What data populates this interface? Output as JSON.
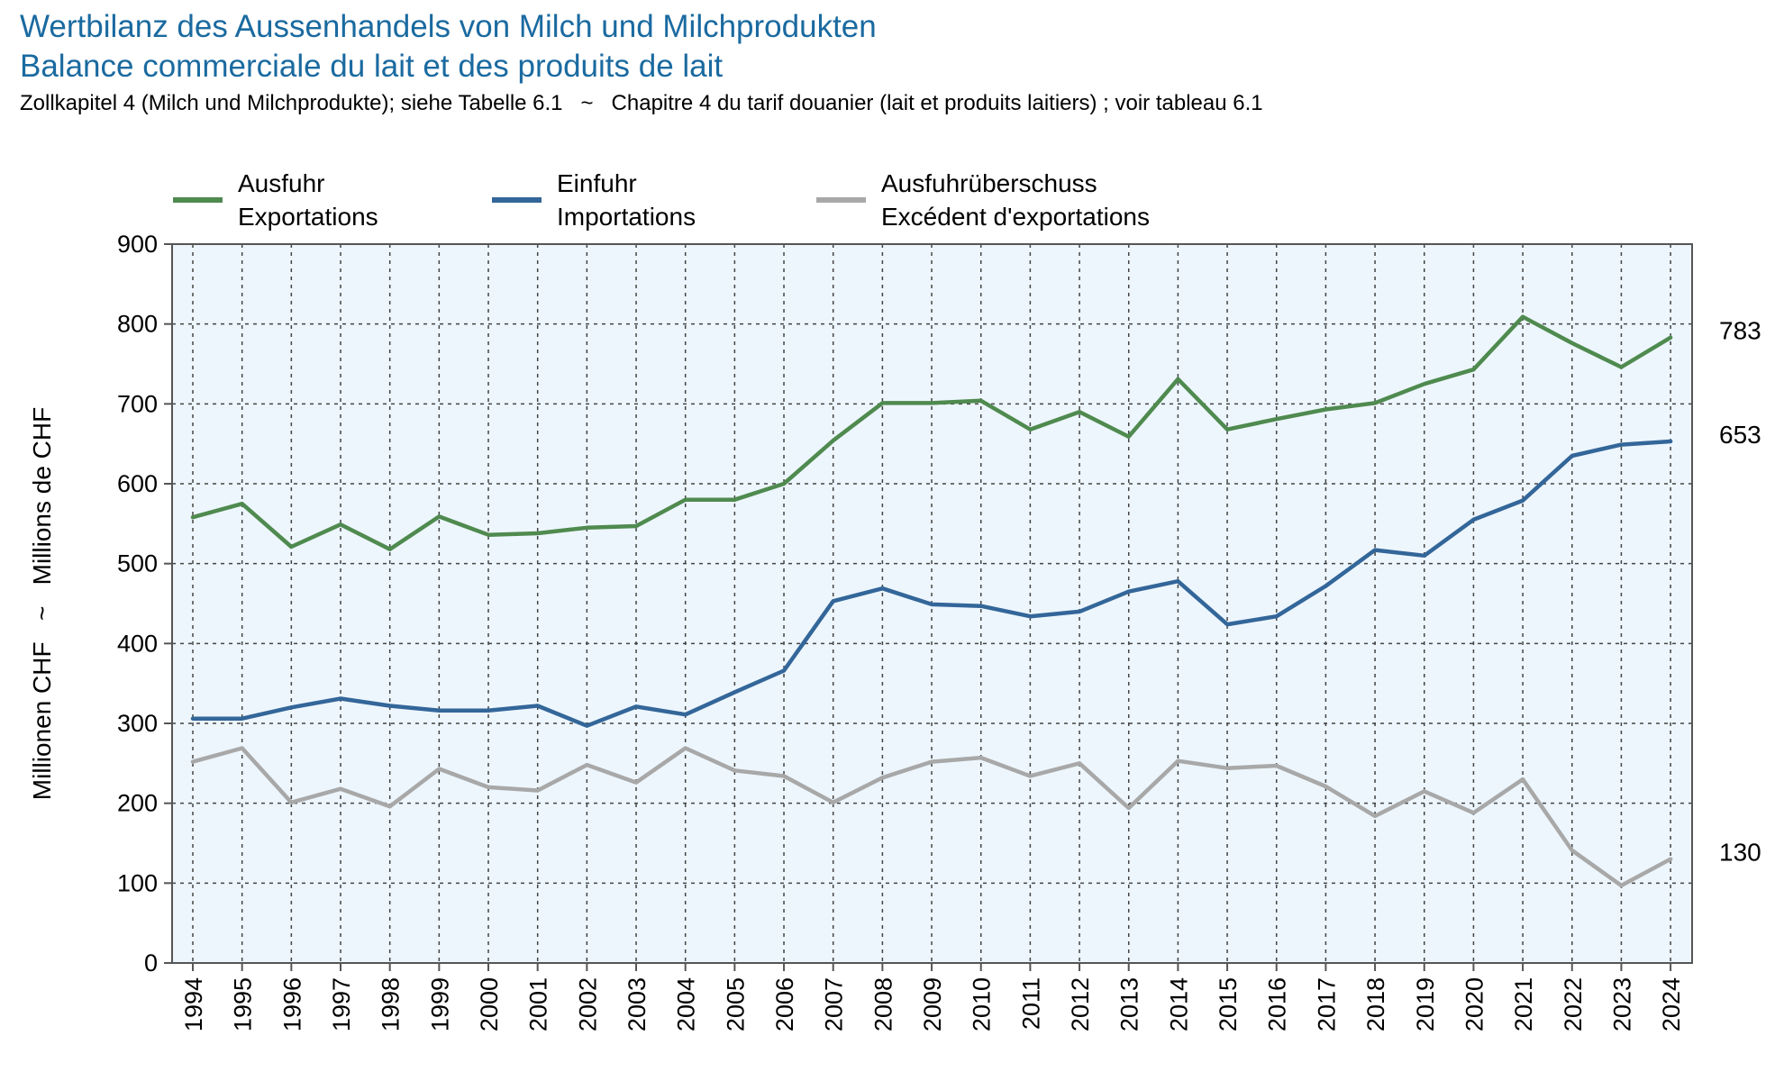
{
  "header": {
    "title_de": "Wertbilanz des Aussenhandels von Milch und Milchprodukten",
    "title_fr": "Balance commerciale du lait et des produits de lait",
    "subtitle": "Zollkapitel 4 (Milch und Milchprodukte); siehe Tabelle 6.1   ~   Chapitre 4 du tarif douanier (lait et produits laitiers) ; voir tableau 6.1"
  },
  "colors": {
    "export": "#4f8a4f",
    "import": "#336699",
    "surplus": "#a8a8a8",
    "plot_background": "#edf6fd",
    "grid": "#444444",
    "frame": "#555555"
  },
  "chart_data": {
    "type": "line",
    "ylabel": "Millionen CHF   ~   Millions de CHF",
    "ylim": [
      0,
      900
    ],
    "yticks": [
      0,
      100,
      200,
      300,
      400,
      500,
      600,
      700,
      800,
      900
    ],
    "grid": true,
    "legend_position": "top",
    "x": [
      1994,
      1995,
      1996,
      1997,
      1998,
      1999,
      2000,
      2001,
      2002,
      2003,
      2004,
      2005,
      2006,
      2007,
      2008,
      2009,
      2010,
      2011,
      2012,
      2013,
      2014,
      2015,
      2016,
      2017,
      2018,
      2019,
      2020,
      2021,
      2022,
      2023,
      2024
    ],
    "series": [
      {
        "key": "export",
        "name_de": "Ausfuhr",
        "name_fr": "Exportations",
        "color": "#4f8a4f",
        "end_label": "783",
        "values": [
          558,
          575,
          521,
          549,
          518,
          559,
          536,
          538,
          545,
          547,
          580,
          580,
          600,
          654,
          701,
          701,
          704,
          668,
          690,
          659,
          731,
          668,
          681,
          693,
          701,
          725,
          743,
          809,
          776,
          746,
          783
        ]
      },
      {
        "key": "import",
        "name_de": "Einfuhr",
        "name_fr": "Importations",
        "color": "#336699",
        "end_label": "653",
        "values": [
          306,
          306,
          320,
          331,
          322,
          316,
          316,
          322,
          297,
          321,
          311,
          339,
          366,
          453,
          469,
          449,
          447,
          434,
          440,
          465,
          478,
          424,
          434,
          472,
          517,
          510,
          555,
          579,
          635,
          649,
          653
        ]
      },
      {
        "key": "surplus",
        "name_de": "Ausfuhrüberschuss",
        "name_fr": "Excédent d'exportations",
        "color": "#a8a8a8",
        "end_label": "130",
        "values": [
          252,
          269,
          201,
          218,
          196,
          243,
          220,
          216,
          248,
          226,
          269,
          241,
          234,
          201,
          232,
          252,
          257,
          234,
          250,
          194,
          253,
          244,
          247,
          221,
          184,
          215,
          188,
          230,
          141,
          97,
          130
        ]
      }
    ]
  }
}
